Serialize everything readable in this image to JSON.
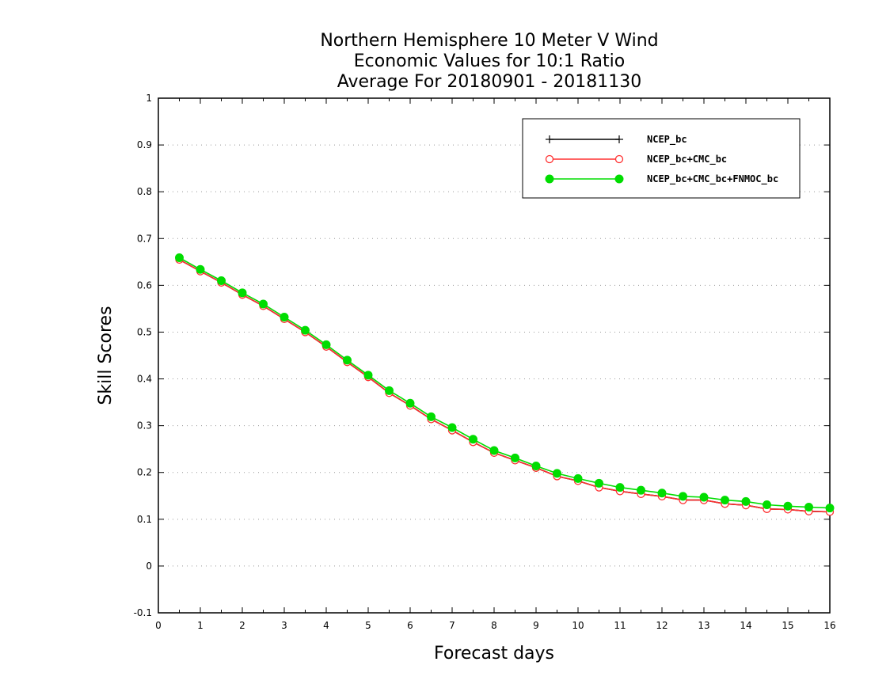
{
  "chart_data": {
    "type": "line",
    "title": [
      "Northern Hemisphere 10 Meter V Wind",
      "Economic Values for 10:1 Ratio",
      "Average For 20180901 - 20181130"
    ],
    "xlabel": "Forecast days",
    "ylabel": "Skill Scores",
    "xlim": [
      0,
      16
    ],
    "ylim": [
      -0.1,
      1
    ],
    "xticks": [
      "0",
      "1",
      "2",
      "3",
      "4",
      "5",
      "6",
      "7",
      "8",
      "9",
      "10",
      "11",
      "12",
      "13",
      "14",
      "15",
      "16"
    ],
    "yticks": [
      "-0.1",
      "0",
      "0.1",
      "0.2",
      "0.3",
      "0.4",
      "0.5",
      "0.6",
      "0.7",
      "0.8",
      "0.9",
      "1"
    ],
    "grid": "horizontal dotted",
    "legend_position": "top-right",
    "x": [
      0.5,
      1,
      1.5,
      2,
      2.5,
      3,
      3.5,
      4,
      4.5,
      5,
      5.5,
      6,
      6.5,
      7,
      7.5,
      8,
      8.5,
      9,
      9.5,
      10,
      10.5,
      11,
      11.5,
      12,
      12.5,
      13,
      13.5,
      14,
      14.5,
      15,
      15.5,
      16
    ],
    "series": [
      {
        "name": "NCEP_bc",
        "color": "#000000",
        "marker": "plus",
        "values": [
          0.655,
          0.63,
          0.606,
          0.58,
          0.556,
          0.528,
          0.5,
          0.469,
          0.436,
          0.404,
          0.37,
          0.343,
          0.314,
          0.29,
          0.265,
          0.242,
          0.226,
          0.21,
          0.192,
          0.182,
          0.168,
          0.16,
          0.154,
          0.149,
          0.141,
          0.141,
          0.133,
          0.13,
          0.122,
          0.121,
          0.117,
          0.116
        ]
      },
      {
        "name": "NCEP_bc+CMC_bc",
        "color": "#ff3030",
        "marker": "open-circle",
        "values": [
          0.655,
          0.63,
          0.606,
          0.58,
          0.556,
          0.528,
          0.5,
          0.469,
          0.436,
          0.404,
          0.37,
          0.343,
          0.314,
          0.29,
          0.265,
          0.242,
          0.226,
          0.21,
          0.192,
          0.182,
          0.168,
          0.16,
          0.154,
          0.149,
          0.141,
          0.141,
          0.133,
          0.13,
          0.122,
          0.121,
          0.117,
          0.116
        ]
      },
      {
        "name": "NCEP_bc+CMC_bc+FNMOC_bc",
        "color": "#00dd00",
        "marker": "filled-circle",
        "values": [
          0.659,
          0.634,
          0.61,
          0.584,
          0.56,
          0.532,
          0.504,
          0.473,
          0.44,
          0.408,
          0.375,
          0.348,
          0.319,
          0.296,
          0.271,
          0.247,
          0.231,
          0.214,
          0.198,
          0.187,
          0.177,
          0.168,
          0.162,
          0.156,
          0.149,
          0.147,
          0.141,
          0.138,
          0.131,
          0.128,
          0.126,
          0.124
        ]
      }
    ]
  }
}
